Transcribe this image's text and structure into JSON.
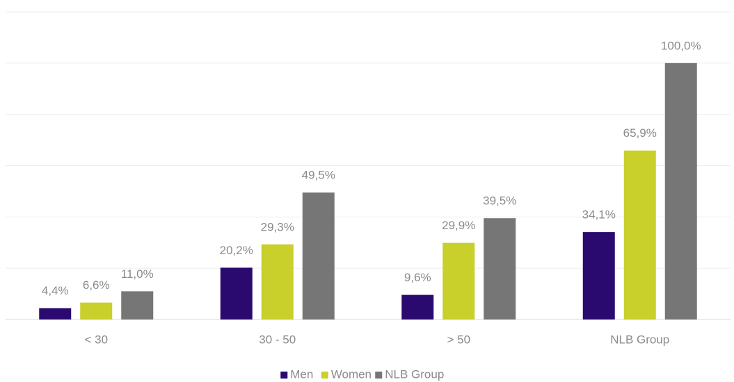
{
  "chart_data": {
    "type": "bar",
    "categories": [
      "< 30",
      "30 - 50",
      "> 50",
      "NLB Group"
    ],
    "series": [
      {
        "name": "Men",
        "color": "#2b0a6f",
        "values": [
          4.4,
          20.2,
          9.6,
          34.1
        ],
        "value_labels": [
          "4,4%",
          "20,2%",
          "9,6%",
          "34,1%"
        ]
      },
      {
        "name": "Women",
        "color": "#c9cf2b",
        "values": [
          6.6,
          29.3,
          29.9,
          65.9
        ],
        "value_labels": [
          "6,6%",
          "29,3%",
          "29,9%",
          "65,9%"
        ]
      },
      {
        "name": "NLB Group",
        "color": "#767676",
        "values": [
          11.0,
          49.5,
          39.5,
          100.0
        ],
        "value_labels": [
          "11,0%",
          "49,5%",
          "39,5%",
          "100,0%"
        ]
      }
    ],
    "ylim": [
      0,
      120
    ],
    "yticks": [
      0,
      20,
      40,
      60,
      80,
      100,
      120
    ],
    "grid": true,
    "legend": "bottom"
  }
}
